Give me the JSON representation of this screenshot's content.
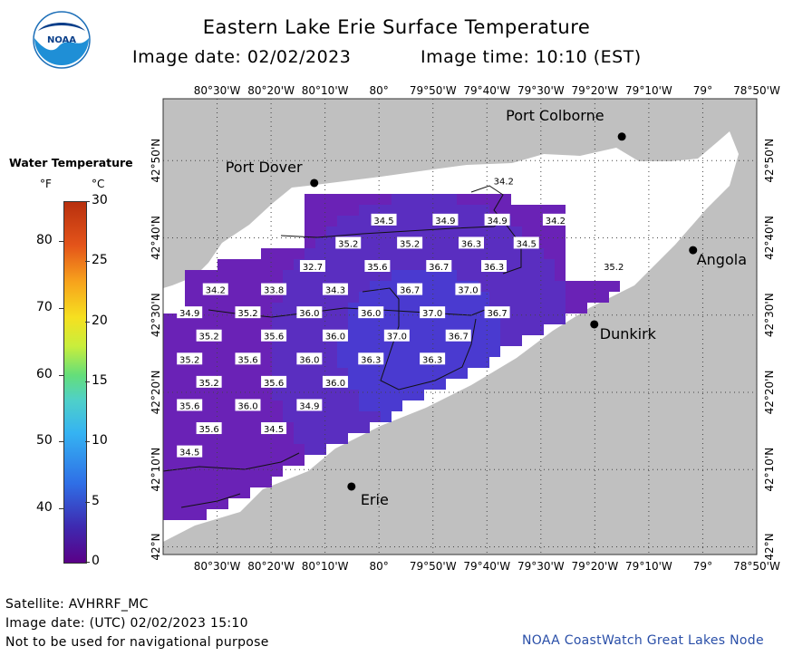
{
  "header": {
    "title": "Eastern Lake Erie Surface Temperature",
    "image_date": "Image date: 02/02/2023",
    "image_time": "Image time: 10:10 (EST)"
  },
  "logo": {
    "text": "NOAA",
    "icon": "noaa-logo-icon"
  },
  "legend": {
    "title": "Water Temperature",
    "unit_f": "°F",
    "unit_c": "°C",
    "f_ticks": [
      "80",
      "70",
      "60",
      "50",
      "40"
    ],
    "c_ticks": [
      "30",
      "25",
      "20",
      "15",
      "10",
      "5",
      "0"
    ]
  },
  "map": {
    "lon_labels": [
      "80°30'W",
      "80°20'W",
      "80°10'W",
      "80°",
      "79°50'W",
      "79°40'W",
      "79°30'W",
      "79°20'W",
      "79°10'W",
      "79°",
      "78°50'W"
    ],
    "lat_labels": [
      "42°50'N",
      "42°40'N",
      "42°30'N",
      "42°20'N",
      "42°10'N",
      "42°N"
    ],
    "cities": [
      {
        "name": "Port Colborne",
        "lon": -79.25,
        "lat": 42.885
      },
      {
        "name": "Port Dover",
        "lon": -80.2,
        "lat": 42.785
      },
      {
        "name": "Angola",
        "lon": -79.03,
        "lat": 42.64
      },
      {
        "name": "Dunkirk",
        "lon": -79.335,
        "lat": 42.48
      },
      {
        "name": "Erie",
        "lon": -80.085,
        "lat": 42.13
      }
    ],
    "temps": [
      {
        "v": "34.2",
        "lon": -79.615,
        "lat": 42.79
      },
      {
        "v": "34.5",
        "lon": -79.985,
        "lat": 42.705
      },
      {
        "v": "34.9",
        "lon": -79.795,
        "lat": 42.705
      },
      {
        "v": "34.9",
        "lon": -79.635,
        "lat": 42.705
      },
      {
        "v": "34.2",
        "lon": -79.455,
        "lat": 42.705
      },
      {
        "v": "35.2",
        "lon": -80.095,
        "lat": 42.655
      },
      {
        "v": "35.2",
        "lon": -79.905,
        "lat": 42.655
      },
      {
        "v": "36.3",
        "lon": -79.715,
        "lat": 42.655
      },
      {
        "v": "34.5",
        "lon": -79.545,
        "lat": 42.655
      },
      {
        "v": "32.7",
        "lon": -80.205,
        "lat": 42.605
      },
      {
        "v": "35.6",
        "lon": -80.005,
        "lat": 42.605
      },
      {
        "v": "36.7",
        "lon": -79.815,
        "lat": 42.605
      },
      {
        "v": "36.3",
        "lon": -79.645,
        "lat": 42.605
      },
      {
        "v": "35.2",
        "lon": -79.275,
        "lat": 42.605
      },
      {
        "v": "34.2",
        "lon": -80.505,
        "lat": 42.555
      },
      {
        "v": "33.8",
        "lon": -80.325,
        "lat": 42.555
      },
      {
        "v": "34.3",
        "lon": -80.135,
        "lat": 42.555
      },
      {
        "v": "36.7",
        "lon": -79.905,
        "lat": 42.555
      },
      {
        "v": "37.0",
        "lon": -79.725,
        "lat": 42.555
      },
      {
        "v": "34.9",
        "lon": -80.585,
        "lat": 42.505
      },
      {
        "v": "35.2",
        "lon": -80.405,
        "lat": 42.505
      },
      {
        "v": "36.0",
        "lon": -80.215,
        "lat": 42.505
      },
      {
        "v": "36.0",
        "lon": -80.025,
        "lat": 42.505
      },
      {
        "v": "37.0",
        "lon": -79.835,
        "lat": 42.505
      },
      {
        "v": "36.7",
        "lon": -79.635,
        "lat": 42.505
      },
      {
        "v": "35.2",
        "lon": -80.525,
        "lat": 42.455
      },
      {
        "v": "35.6",
        "lon": -80.325,
        "lat": 42.455
      },
      {
        "v": "36.0",
        "lon": -80.135,
        "lat": 42.455
      },
      {
        "v": "37.0",
        "lon": -79.945,
        "lat": 42.455
      },
      {
        "v": "36.7",
        "lon": -79.755,
        "lat": 42.455
      },
      {
        "v": "35.2",
        "lon": -80.585,
        "lat": 42.405
      },
      {
        "v": "35.6",
        "lon": -80.405,
        "lat": 42.405
      },
      {
        "v": "36.0",
        "lon": -80.215,
        "lat": 42.405
      },
      {
        "v": "36.3",
        "lon": -80.025,
        "lat": 42.405
      },
      {
        "v": "36.3",
        "lon": -79.835,
        "lat": 42.405
      },
      {
        "v": "35.2",
        "lon": -80.525,
        "lat": 42.355
      },
      {
        "v": "35.6",
        "lon": -80.325,
        "lat": 42.355
      },
      {
        "v": "36.0",
        "lon": -80.135,
        "lat": 42.355
      },
      {
        "v": "35.6",
        "lon": -80.585,
        "lat": 42.305
      },
      {
        "v": "36.0",
        "lon": -80.405,
        "lat": 42.305
      },
      {
        "v": "34.9",
        "lon": -80.215,
        "lat": 42.305
      },
      {
        "v": "35.6",
        "lon": -80.525,
        "lat": 42.255
      },
      {
        "v": "34.5",
        "lon": -80.325,
        "lat": 42.255
      },
      {
        "v": "34.5",
        "lon": -80.585,
        "lat": 42.205
      }
    ]
  },
  "footer": {
    "satellite": "Satellite: AVHRRF_MC",
    "utc_date": "Image date: (UTC) 02/02/2023   15:10",
    "disclaimer": "Not to be used for navigational purpose",
    "credit": "NOAA CoastWatch Great Lakes Node"
  }
}
